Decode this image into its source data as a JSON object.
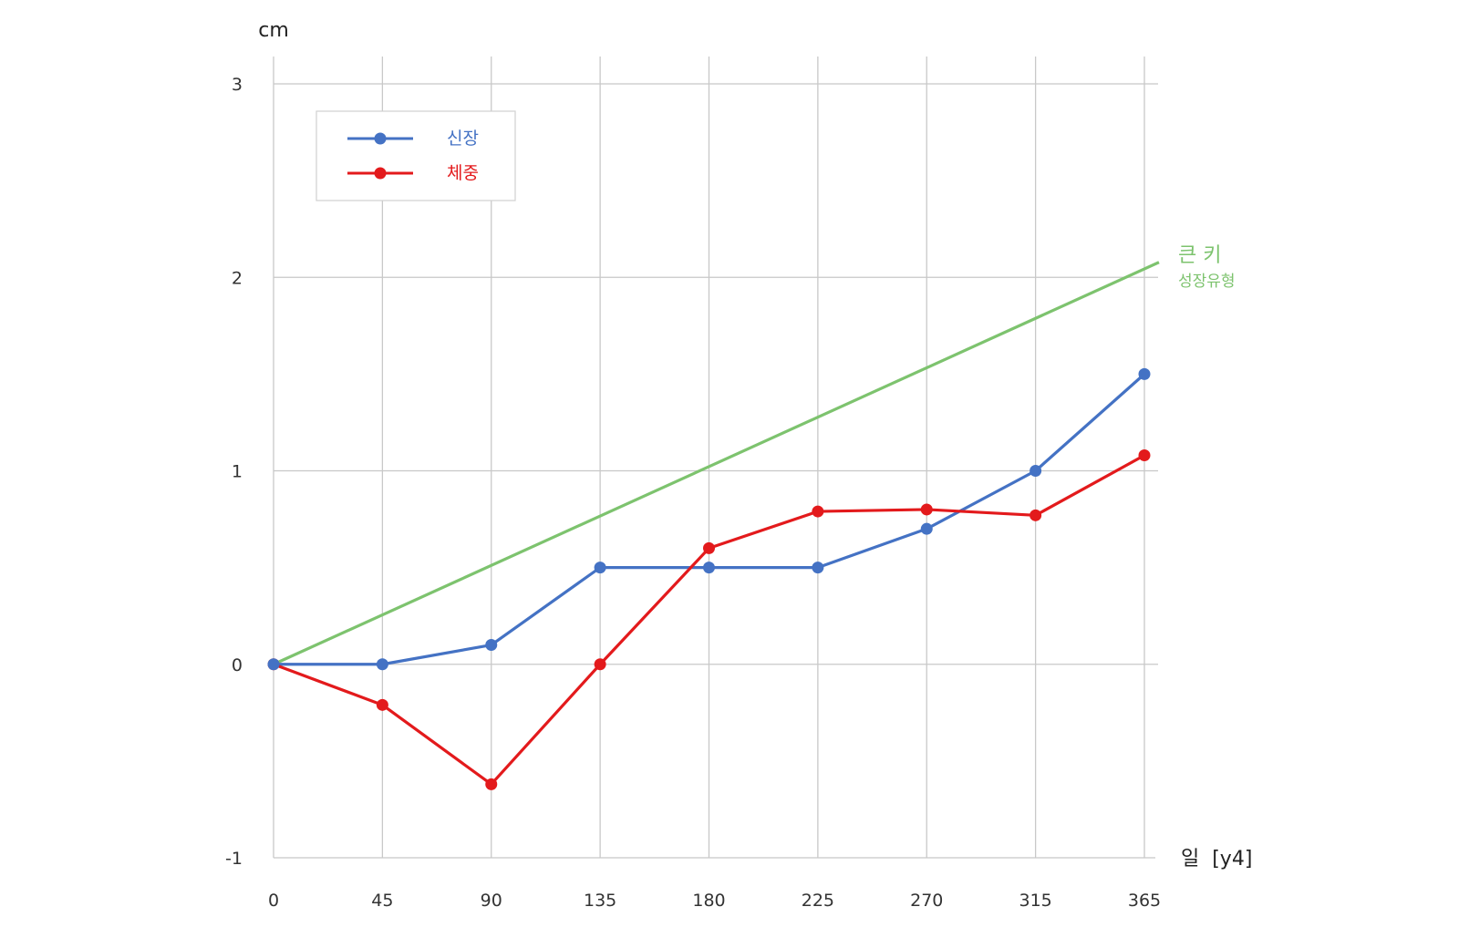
{
  "chart_data": {
    "type": "line",
    "ylabel": "cm",
    "xlabel": "일  [y4]",
    "x": [
      0,
      45,
      90,
      135,
      180,
      225,
      270,
      315,
      365
    ],
    "x_ticks": [
      "0",
      "45",
      "90",
      "135",
      "180",
      "225",
      "270",
      "315",
      "365"
    ],
    "y_ticks": [
      "-1",
      "0",
      "1",
      "2",
      "3"
    ],
    "xlim": [
      0,
      365
    ],
    "ylim": [
      -1,
      3
    ],
    "grid": true,
    "legend_position": "top-left",
    "series": [
      {
        "name": "신장",
        "color": "#4472c4",
        "values": [
          0,
          0,
          0.1,
          0.5,
          0.5,
          0.5,
          0.7,
          1.0,
          1.5
        ]
      },
      {
        "name": "체중",
        "color": "#e31a1c",
        "values": [
          0,
          -0.21,
          -0.62,
          0,
          0.6,
          0.79,
          0.8,
          0.77,
          1.08
        ]
      }
    ],
    "reference_line": {
      "title": "큰 키",
      "subtitle": "성장유형",
      "color": "#7dc36e",
      "x": [
        0,
        365
      ],
      "values": [
        0,
        2.04
      ]
    }
  }
}
